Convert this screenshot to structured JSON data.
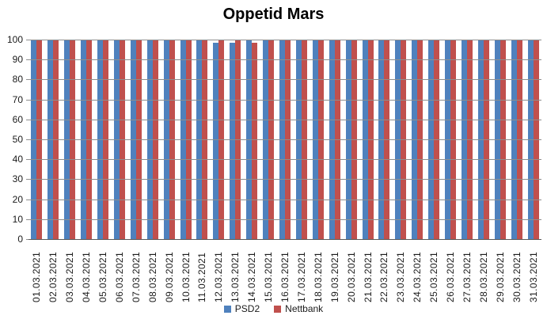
{
  "title": "Oppetid Mars",
  "colors": {
    "psd2": "#4F81BD",
    "nettbank": "#C0504D",
    "gridline": "#8e8e8e",
    "axis_line": "#595959",
    "axis_text": "#1a1a1a"
  },
  "legend": {
    "position": "bottom",
    "items": [
      {
        "label": "PSD2",
        "color": "#4F81BD"
      },
      {
        "label": "Nettbank",
        "color": "#C0504D"
      }
    ]
  },
  "chart_data": {
    "type": "bar",
    "title": "Oppetid Mars",
    "xlabel": "",
    "ylabel": "",
    "ylim": [
      0,
      100
    ],
    "yticks": [
      0,
      10,
      20,
      30,
      40,
      50,
      60,
      70,
      80,
      90,
      100
    ],
    "grid": "horizontal-over-bars",
    "legend_position": "bottom",
    "categories": [
      "01.03.2021",
      "02.03.2021",
      "03.03.2021",
      "04.03.2021",
      "05.03.2021",
      "06.03.2021",
      "07.03.2021",
      "08.03.2021",
      "09.03.2021",
      "10.03.2021",
      "11.03.2021",
      "12.03.2021",
      "13.03.2021",
      "14.03.2021",
      "15.03.2021",
      "16.03.2021",
      "17.03.2021",
      "18.03.2021",
      "19.03.2021",
      "20.03.2021",
      "21.03.2021",
      "22.03.2021",
      "23.03.2021",
      "24.03.2021",
      "25.03.2021",
      "26.03.2021",
      "27.03.2021",
      "28.03.2021",
      "29.03.2021",
      "30.03.2021",
      "31.03.2021"
    ],
    "series": [
      {
        "name": "PSD2",
        "color": "#4F81BD",
        "values": [
          100,
          100,
          100,
          100,
          100,
          100,
          100,
          100,
          100,
          100,
          100,
          98.5,
          98.5,
          100,
          100,
          100,
          100,
          100,
          100,
          100,
          100,
          100,
          100,
          100,
          100,
          100,
          100,
          100,
          100,
          100,
          100
        ]
      },
      {
        "name": "Nettbank",
        "color": "#C0504D",
        "values": [
          100,
          100,
          100,
          100,
          100,
          100,
          100,
          100,
          100,
          100,
          100,
          100,
          100,
          98.5,
          100,
          100,
          100,
          100,
          100,
          100,
          100,
          100,
          100,
          100,
          100,
          100,
          100,
          100,
          100,
          100,
          100
        ]
      }
    ]
  }
}
